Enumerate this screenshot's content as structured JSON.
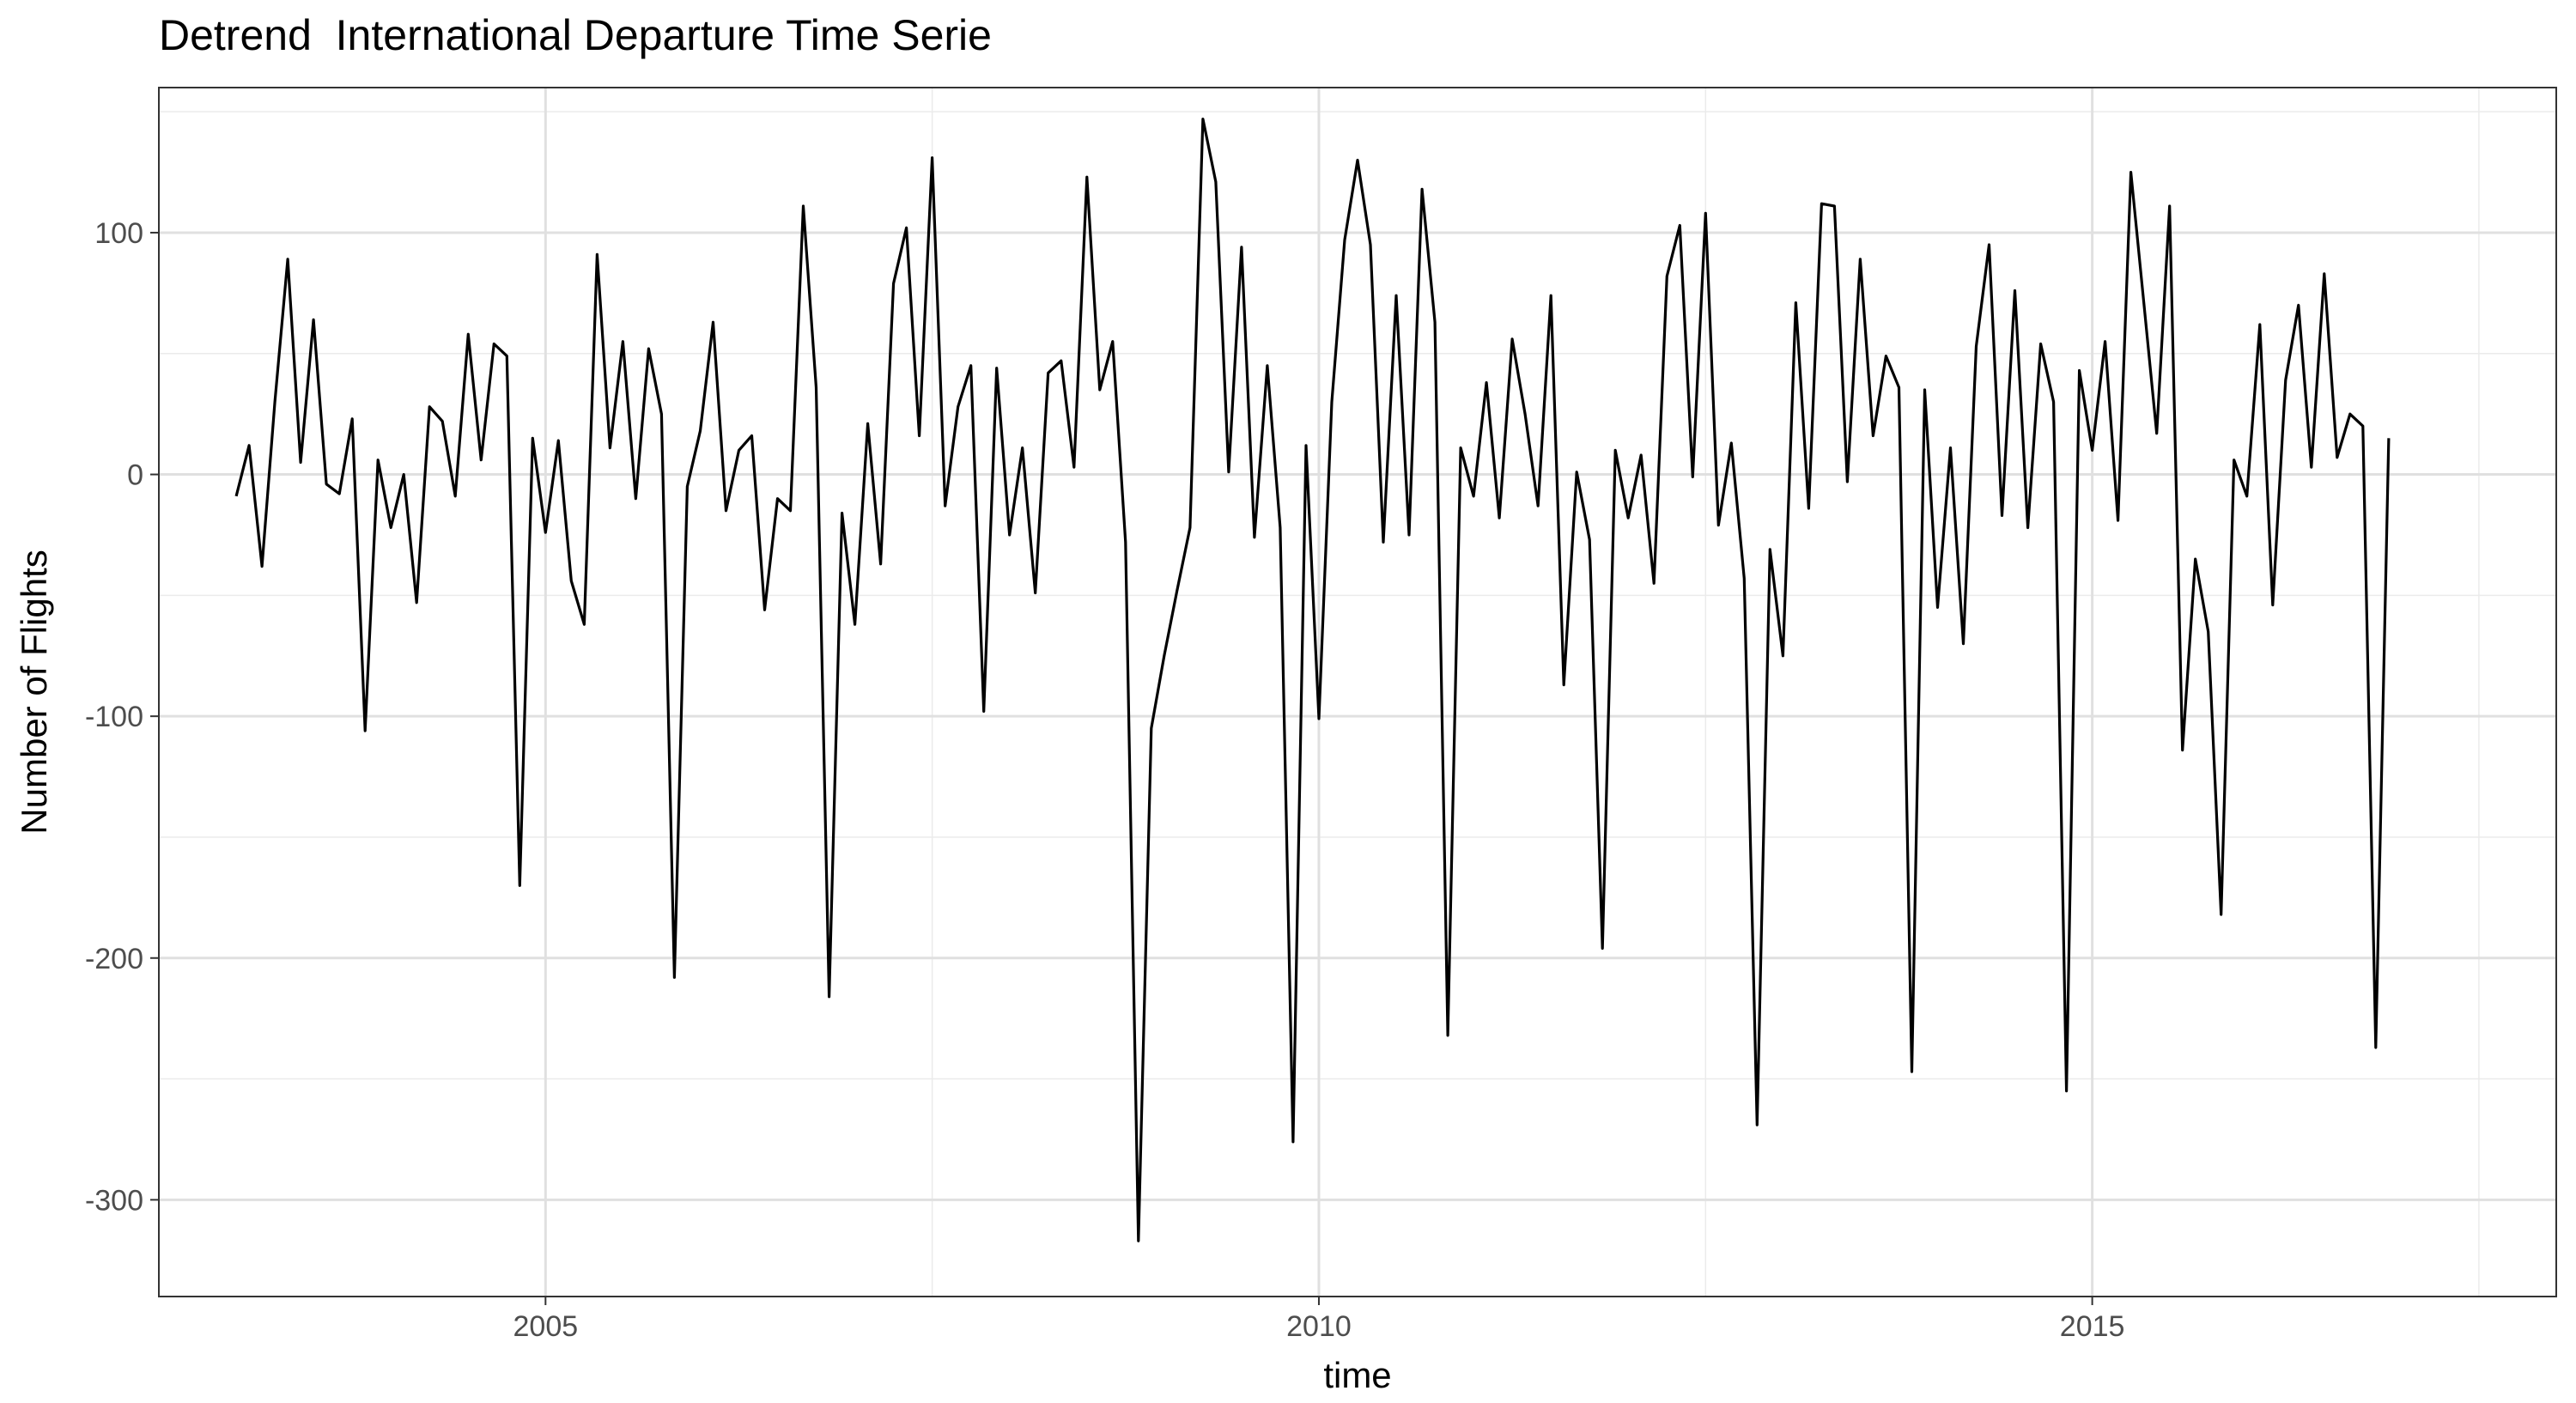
{
  "chart_data": {
    "type": "line",
    "title": "Detrend  International Departure Time Serie",
    "xlabel": "time",
    "ylabel": "Number of Flights",
    "xlim": [
      2002.5,
      2018.0
    ],
    "ylim": [
      -340,
      160
    ],
    "x_ticks": [
      2005,
      2010,
      2015
    ],
    "x_tick_labels": [
      "2005",
      "2010",
      "2015"
    ],
    "x_minor_ticks": [
      2002.5,
      2007.5,
      2012.5,
      2017.5
    ],
    "y_ticks": [
      -300,
      -200,
      -100,
      0,
      100
    ],
    "y_tick_labels": [
      "-300",
      "-200",
      "-100",
      "0",
      "100"
    ],
    "y_minor_ticks": [
      -250,
      -150,
      -50,
      50,
      150
    ],
    "grid": true,
    "legend": "none",
    "line_color": "#000000",
    "start": 2003.0,
    "frequency": 12,
    "series": [
      {
        "values": [
          -9,
          12,
          -38,
          30,
          89,
          5,
          64,
          -4,
          -8,
          23,
          -106,
          6,
          -22,
          0,
          -53,
          28,
          22,
          -9,
          58,
          6,
          54,
          49,
          -170,
          15,
          -24,
          14,
          -44,
          -62,
          91,
          11,
          55,
          -10,
          52,
          25,
          -208,
          -5,
          18,
          63,
          -15,
          10,
          16,
          -56,
          -10,
          -15,
          111,
          36,
          -216,
          -16,
          -62,
          21,
          -37,
          79,
          102,
          16,
          131,
          -13,
          28,
          45,
          -98,
          44,
          -25,
          11,
          -49,
          42,
          47,
          3,
          123,
          35,
          55,
          -28,
          -317,
          -105,
          -75,
          -48,
          -22,
          147,
          121,
          1,
          94,
          -26,
          45,
          -22,
          -276,
          12,
          -101,
          30,
          97,
          130,
          95,
          -28,
          74,
          -25,
          118,
          63,
          -232,
          11,
          -9,
          38,
          -18,
          56,
          25,
          -13,
          74,
          -87,
          1,
          -27,
          -196,
          10,
          -18,
          8,
          -45,
          82,
          103,
          -1,
          108,
          -21,
          13,
          -43,
          -269,
          -31,
          -75,
          71,
          -14,
          112,
          111,
          -3,
          89,
          16,
          49,
          36,
          -247,
          35,
          -55,
          11,
          -70,
          53,
          95,
          -17,
          76,
          -22,
          54,
          30,
          -255,
          43,
          10,
          55,
          -19,
          125,
          71,
          17,
          111,
          -114,
          -35,
          -65,
          -182,
          6,
          -9,
          62,
          -54,
          39,
          70,
          3,
          83,
          7,
          25,
          20,
          -237,
          15
        ]
      }
    ]
  }
}
